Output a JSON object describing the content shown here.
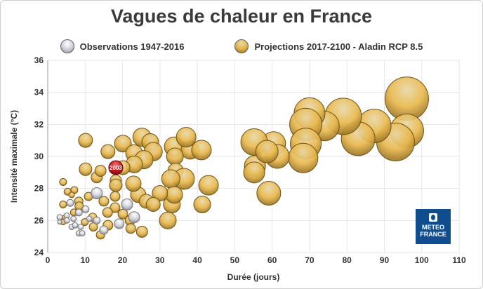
{
  "chart_data": {
    "type": "scatter",
    "subtype": "bubble",
    "title": "Vagues de chaleur en France",
    "xlabel": "Durée (jours)",
    "ylabel": "Intensité maximale (°C)",
    "xlim": [
      0,
      110
    ],
    "ylim": [
      24,
      36
    ],
    "xticks": [
      0,
      10,
      20,
      30,
      40,
      50,
      60,
      70,
      80,
      90,
      100,
      110
    ],
    "yticks": [
      24,
      26,
      28,
      30,
      32,
      34,
      36
    ],
    "grid": true,
    "legend_placement": "top",
    "size_note": "relative bubble size",
    "series": [
      {
        "name": "Observations 1947-2016",
        "color": "#c8c8d2",
        "points": [
          {
            "x": 13.1,
            "y": 27.7,
            "size": 8
          },
          {
            "x": 21.2,
            "y": 27.0,
            "size": 8
          },
          {
            "x": 23.1,
            "y": 26.2,
            "size": 8
          },
          {
            "x": 19.1,
            "y": 25.8,
            "size": 7
          },
          {
            "x": 15.0,
            "y": 25.4,
            "size": 6
          },
          {
            "x": 13.1,
            "y": 26.0,
            "size": 5
          },
          {
            "x": 10.1,
            "y": 26.7,
            "size": 5
          },
          {
            "x": 8.3,
            "y": 26.5,
            "size": 5
          },
          {
            "x": 6.0,
            "y": 27.1,
            "size": 5
          },
          {
            "x": 5.1,
            "y": 26.3,
            "size": 4
          },
          {
            "x": 3.2,
            "y": 26.2,
            "size": 4
          },
          {
            "x": 3.2,
            "y": 25.9,
            "size": 3
          },
          {
            "x": 5.1,
            "y": 26.0,
            "size": 4
          },
          {
            "x": 6.9,
            "y": 26.1,
            "size": 4
          },
          {
            "x": 6.4,
            "y": 25.6,
            "size": 4
          },
          {
            "x": 8.3,
            "y": 25.2,
            "size": 4
          },
          {
            "x": 9.2,
            "y": 25.2,
            "size": 4
          },
          {
            "x": 11.1,
            "y": 26.1,
            "size": 4
          },
          {
            "x": 7.3,
            "y": 25.7,
            "size": 4
          },
          {
            "x": 8.8,
            "y": 25.6,
            "size": 4
          }
        ]
      },
      {
        "name": "Projections 2017-2100 - Aladin RCP 8.5",
        "color": "#e6b54a",
        "points": [
          {
            "x": 96,
            "y": 33.6,
            "size": 31
          },
          {
            "x": 96,
            "y": 31.6,
            "size": 24
          },
          {
            "x": 93,
            "y": 30.9,
            "size": 27
          },
          {
            "x": 87.3,
            "y": 31.9,
            "size": 24
          },
          {
            "x": 83,
            "y": 31.1,
            "size": 24
          },
          {
            "x": 79,
            "y": 32.5,
            "size": 26
          },
          {
            "x": 74,
            "y": 31.9,
            "size": 21
          },
          {
            "x": 70,
            "y": 32.7,
            "size": 22
          },
          {
            "x": 69,
            "y": 32.0,
            "size": 23
          },
          {
            "x": 69,
            "y": 30.8,
            "size": 22
          },
          {
            "x": 68.3,
            "y": 29.9,
            "size": 21
          },
          {
            "x": 60.4,
            "y": 30.8,
            "size": 17
          },
          {
            "x": 61.4,
            "y": 30.0,
            "size": 17
          },
          {
            "x": 55.2,
            "y": 30.9,
            "size": 19
          },
          {
            "x": 55.4,
            "y": 29.4,
            "size": 15
          },
          {
            "x": 55.2,
            "y": 29.0,
            "size": 15
          },
          {
            "x": 59.1,
            "y": 27.7,
            "size": 17
          },
          {
            "x": 58.6,
            "y": 30.3,
            "size": 16
          },
          {
            "x": 10.1,
            "y": 31.0,
            "size": 10
          },
          {
            "x": 16.1,
            "y": 30.3,
            "size": 10
          },
          {
            "x": 20.1,
            "y": 30.8,
            "size": 12
          },
          {
            "x": 25.2,
            "y": 31.2,
            "size": 13
          },
          {
            "x": 27.4,
            "y": 30.9,
            "size": 12
          },
          {
            "x": 28.2,
            "y": 30.3,
            "size": 13
          },
          {
            "x": 23.1,
            "y": 30.2,
            "size": 12
          },
          {
            "x": 25.7,
            "y": 29.8,
            "size": 13
          },
          {
            "x": 23.1,
            "y": 29.5,
            "size": 12
          },
          {
            "x": 33.8,
            "y": 30.6,
            "size": 14
          },
          {
            "x": 38.1,
            "y": 30.4,
            "size": 13
          },
          {
            "x": 37,
            "y": 31.2,
            "size": 14
          },
          {
            "x": 41.1,
            "y": 30.4,
            "size": 14
          },
          {
            "x": 34,
            "y": 30.0,
            "size": 12
          },
          {
            "x": 34.2,
            "y": 29.1,
            "size": 11
          },
          {
            "x": 36.4,
            "y": 28.6,
            "size": 15
          },
          {
            "x": 32.9,
            "y": 28.6,
            "size": 13
          },
          {
            "x": 43,
            "y": 28.2,
            "size": 14
          },
          {
            "x": 41.3,
            "y": 27.0,
            "size": 12
          },
          {
            "x": 33.2,
            "y": 27.0,
            "size": 12
          },
          {
            "x": 33.8,
            "y": 27.6,
            "size": 12
          },
          {
            "x": 30,
            "y": 27.7,
            "size": 11
          },
          {
            "x": 32.1,
            "y": 26.0,
            "size": 12
          },
          {
            "x": 24.2,
            "y": 27.6,
            "size": 11
          },
          {
            "x": 26.3,
            "y": 27.2,
            "size": 10
          },
          {
            "x": 28.2,
            "y": 27.0,
            "size": 10
          },
          {
            "x": 22.9,
            "y": 28.3,
            "size": 11
          },
          {
            "x": 18.2,
            "y": 28.5,
            "size": 8
          },
          {
            "x": 18.2,
            "y": 28.2,
            "size": 9
          },
          {
            "x": 13.1,
            "y": 28.7,
            "size": 8
          },
          {
            "x": 10.1,
            "y": 29.2,
            "size": 9
          },
          {
            "x": 14.1,
            "y": 29.1,
            "size": 8
          },
          {
            "x": 20.1,
            "y": 29.3,
            "size": 10
          },
          {
            "x": 4.1,
            "y": 28.4,
            "size": 5
          },
          {
            "x": 5.3,
            "y": 27.8,
            "size": 5
          },
          {
            "x": 7.1,
            "y": 27.9,
            "size": 5
          },
          {
            "x": 6.4,
            "y": 27.6,
            "size": 4
          },
          {
            "x": 4.1,
            "y": 27.0,
            "size": 5
          },
          {
            "x": 8.3,
            "y": 27.2,
            "size": 6
          },
          {
            "x": 10.9,
            "y": 27.5,
            "size": 6
          },
          {
            "x": 18,
            "y": 27.5,
            "size": 7
          },
          {
            "x": 15,
            "y": 27.2,
            "size": 7
          },
          {
            "x": 18,
            "y": 26.8,
            "size": 7
          },
          {
            "x": 20.1,
            "y": 26.4,
            "size": 7
          },
          {
            "x": 22,
            "y": 26.0,
            "size": 7
          },
          {
            "x": 22.2,
            "y": 25.5,
            "size": 7
          },
          {
            "x": 25.2,
            "y": 25.3,
            "size": 8
          },
          {
            "x": 14.1,
            "y": 25.1,
            "size": 6
          },
          {
            "x": 16.1,
            "y": 25.7,
            "size": 7
          },
          {
            "x": 16.0,
            "y": 26.5,
            "size": 7
          },
          {
            "x": 12.2,
            "y": 25.6,
            "size": 6
          },
          {
            "x": 12.0,
            "y": 26.2,
            "size": 6
          },
          {
            "x": 8.4,
            "y": 26.9,
            "size": 6
          },
          {
            "x": 7.0,
            "y": 26.5,
            "size": 5
          },
          {
            "x": 9.9,
            "y": 25.9,
            "size": 5
          },
          {
            "x": 4.7,
            "y": 26.2,
            "size": 4
          },
          {
            "x": 4.1,
            "y": 25.9,
            "size": 4
          }
        ]
      }
    ],
    "highlight": {
      "label": "2003",
      "x": 18.2,
      "y": 29.3,
      "size": 10,
      "color": "#c0191e"
    }
  },
  "legend": {
    "observations": "Observations 1947-2016",
    "projections": "Projections 2017-2100 - Aladin RCP 8.5"
  },
  "logo": {
    "line1": "METEO",
    "line2": "FRANCE"
  }
}
